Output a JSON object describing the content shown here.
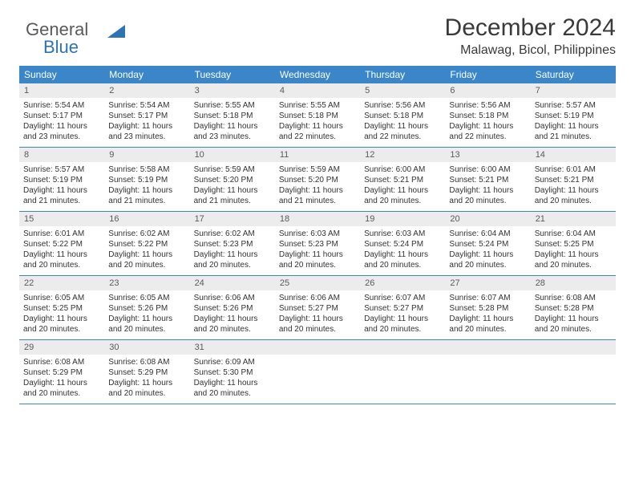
{
  "logo": {
    "word1": "General",
    "word2": "Blue"
  },
  "title": "December 2024",
  "location": "Malawag, Bicol, Philippines",
  "colors": {
    "header_bg": "#3a86c8",
    "header_text": "#ffffff",
    "daynum_bg": "#ececec",
    "border": "#3a86c8",
    "logo_gray": "#5a5a5a",
    "logo_blue": "#2e74b5"
  },
  "day_names": [
    "Sunday",
    "Monday",
    "Tuesday",
    "Wednesday",
    "Thursday",
    "Friday",
    "Saturday"
  ],
  "weeks": [
    [
      {
        "n": "1",
        "sr": "Sunrise: 5:54 AM",
        "ss": "Sunset: 5:17 PM",
        "d1": "Daylight: 11 hours",
        "d2": "and 23 minutes."
      },
      {
        "n": "2",
        "sr": "Sunrise: 5:54 AM",
        "ss": "Sunset: 5:17 PM",
        "d1": "Daylight: 11 hours",
        "d2": "and 23 minutes."
      },
      {
        "n": "3",
        "sr": "Sunrise: 5:55 AM",
        "ss": "Sunset: 5:18 PM",
        "d1": "Daylight: 11 hours",
        "d2": "and 23 minutes."
      },
      {
        "n": "4",
        "sr": "Sunrise: 5:55 AM",
        "ss": "Sunset: 5:18 PM",
        "d1": "Daylight: 11 hours",
        "d2": "and 22 minutes."
      },
      {
        "n": "5",
        "sr": "Sunrise: 5:56 AM",
        "ss": "Sunset: 5:18 PM",
        "d1": "Daylight: 11 hours",
        "d2": "and 22 minutes."
      },
      {
        "n": "6",
        "sr": "Sunrise: 5:56 AM",
        "ss": "Sunset: 5:18 PM",
        "d1": "Daylight: 11 hours",
        "d2": "and 22 minutes."
      },
      {
        "n": "7",
        "sr": "Sunrise: 5:57 AM",
        "ss": "Sunset: 5:19 PM",
        "d1": "Daylight: 11 hours",
        "d2": "and 21 minutes."
      }
    ],
    [
      {
        "n": "8",
        "sr": "Sunrise: 5:57 AM",
        "ss": "Sunset: 5:19 PM",
        "d1": "Daylight: 11 hours",
        "d2": "and 21 minutes."
      },
      {
        "n": "9",
        "sr": "Sunrise: 5:58 AM",
        "ss": "Sunset: 5:19 PM",
        "d1": "Daylight: 11 hours",
        "d2": "and 21 minutes."
      },
      {
        "n": "10",
        "sr": "Sunrise: 5:59 AM",
        "ss": "Sunset: 5:20 PM",
        "d1": "Daylight: 11 hours",
        "d2": "and 21 minutes."
      },
      {
        "n": "11",
        "sr": "Sunrise: 5:59 AM",
        "ss": "Sunset: 5:20 PM",
        "d1": "Daylight: 11 hours",
        "d2": "and 21 minutes."
      },
      {
        "n": "12",
        "sr": "Sunrise: 6:00 AM",
        "ss": "Sunset: 5:21 PM",
        "d1": "Daylight: 11 hours",
        "d2": "and 20 minutes."
      },
      {
        "n": "13",
        "sr": "Sunrise: 6:00 AM",
        "ss": "Sunset: 5:21 PM",
        "d1": "Daylight: 11 hours",
        "d2": "and 20 minutes."
      },
      {
        "n": "14",
        "sr": "Sunrise: 6:01 AM",
        "ss": "Sunset: 5:21 PM",
        "d1": "Daylight: 11 hours",
        "d2": "and 20 minutes."
      }
    ],
    [
      {
        "n": "15",
        "sr": "Sunrise: 6:01 AM",
        "ss": "Sunset: 5:22 PM",
        "d1": "Daylight: 11 hours",
        "d2": "and 20 minutes."
      },
      {
        "n": "16",
        "sr": "Sunrise: 6:02 AM",
        "ss": "Sunset: 5:22 PM",
        "d1": "Daylight: 11 hours",
        "d2": "and 20 minutes."
      },
      {
        "n": "17",
        "sr": "Sunrise: 6:02 AM",
        "ss": "Sunset: 5:23 PM",
        "d1": "Daylight: 11 hours",
        "d2": "and 20 minutes."
      },
      {
        "n": "18",
        "sr": "Sunrise: 6:03 AM",
        "ss": "Sunset: 5:23 PM",
        "d1": "Daylight: 11 hours",
        "d2": "and 20 minutes."
      },
      {
        "n": "19",
        "sr": "Sunrise: 6:03 AM",
        "ss": "Sunset: 5:24 PM",
        "d1": "Daylight: 11 hours",
        "d2": "and 20 minutes."
      },
      {
        "n": "20",
        "sr": "Sunrise: 6:04 AM",
        "ss": "Sunset: 5:24 PM",
        "d1": "Daylight: 11 hours",
        "d2": "and 20 minutes."
      },
      {
        "n": "21",
        "sr": "Sunrise: 6:04 AM",
        "ss": "Sunset: 5:25 PM",
        "d1": "Daylight: 11 hours",
        "d2": "and 20 minutes."
      }
    ],
    [
      {
        "n": "22",
        "sr": "Sunrise: 6:05 AM",
        "ss": "Sunset: 5:25 PM",
        "d1": "Daylight: 11 hours",
        "d2": "and 20 minutes."
      },
      {
        "n": "23",
        "sr": "Sunrise: 6:05 AM",
        "ss": "Sunset: 5:26 PM",
        "d1": "Daylight: 11 hours",
        "d2": "and 20 minutes."
      },
      {
        "n": "24",
        "sr": "Sunrise: 6:06 AM",
        "ss": "Sunset: 5:26 PM",
        "d1": "Daylight: 11 hours",
        "d2": "and 20 minutes."
      },
      {
        "n": "25",
        "sr": "Sunrise: 6:06 AM",
        "ss": "Sunset: 5:27 PM",
        "d1": "Daylight: 11 hours",
        "d2": "and 20 minutes."
      },
      {
        "n": "26",
        "sr": "Sunrise: 6:07 AM",
        "ss": "Sunset: 5:27 PM",
        "d1": "Daylight: 11 hours",
        "d2": "and 20 minutes."
      },
      {
        "n": "27",
        "sr": "Sunrise: 6:07 AM",
        "ss": "Sunset: 5:28 PM",
        "d1": "Daylight: 11 hours",
        "d2": "and 20 minutes."
      },
      {
        "n": "28",
        "sr": "Sunrise: 6:08 AM",
        "ss": "Sunset: 5:28 PM",
        "d1": "Daylight: 11 hours",
        "d2": "and 20 minutes."
      }
    ],
    [
      {
        "n": "29",
        "sr": "Sunrise: 6:08 AM",
        "ss": "Sunset: 5:29 PM",
        "d1": "Daylight: 11 hours",
        "d2": "and 20 minutes."
      },
      {
        "n": "30",
        "sr": "Sunrise: 6:08 AM",
        "ss": "Sunset: 5:29 PM",
        "d1": "Daylight: 11 hours",
        "d2": "and 20 minutes."
      },
      {
        "n": "31",
        "sr": "Sunrise: 6:09 AM",
        "ss": "Sunset: 5:30 PM",
        "d1": "Daylight: 11 hours",
        "d2": "and 20 minutes."
      },
      {
        "n": "",
        "sr": "",
        "ss": "",
        "d1": "",
        "d2": ""
      },
      {
        "n": "",
        "sr": "",
        "ss": "",
        "d1": "",
        "d2": ""
      },
      {
        "n": "",
        "sr": "",
        "ss": "",
        "d1": "",
        "d2": ""
      },
      {
        "n": "",
        "sr": "",
        "ss": "",
        "d1": "",
        "d2": ""
      }
    ]
  ]
}
